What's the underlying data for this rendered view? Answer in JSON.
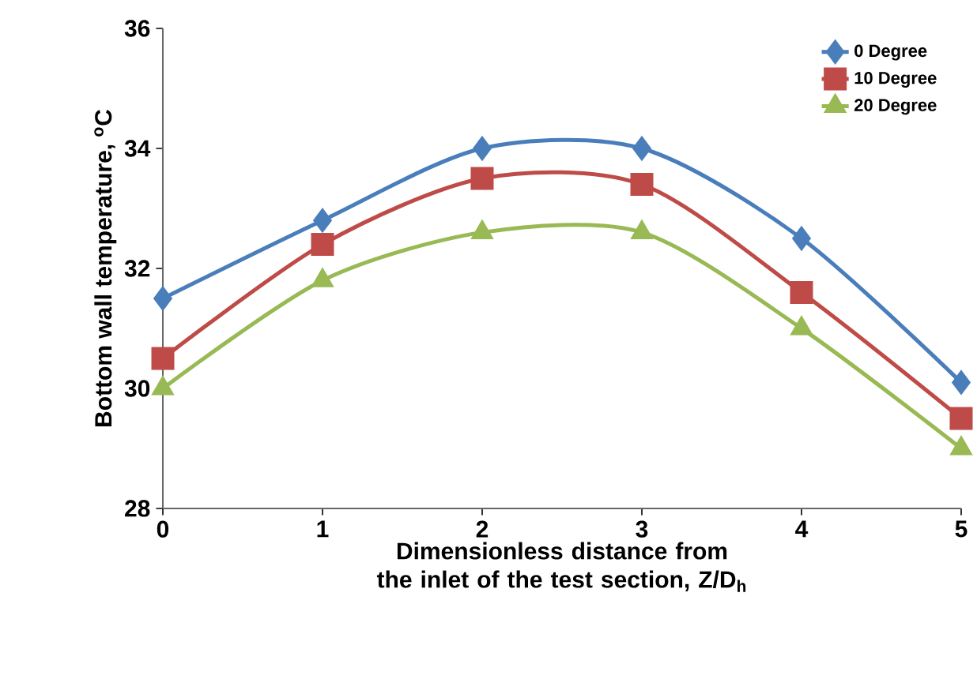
{
  "chart_data": {
    "type": "line",
    "xlabel": "Dimensionless  distance from the inlet of the test section, Z/D$_{h}$",
    "ylabel": "Bottom wall temperature, $^{o}$C",
    "x": [
      0,
      1,
      2,
      3,
      4,
      5
    ],
    "xlim": [
      0,
      5
    ],
    "xticks": [
      0,
      1,
      2,
      3,
      4,
      5
    ],
    "ylim": [
      28,
      36
    ],
    "yticks": [
      28,
      30,
      32,
      34,
      36
    ],
    "series": [
      {
        "name": "0 Degree",
        "color": "#4a7ebb",
        "marker": "diamond",
        "values": [
          31.5,
          32.8,
          34.0,
          34.0,
          32.5,
          30.1
        ]
      },
      {
        "name": "10 Degree",
        "color": "#be4b48",
        "marker": "square",
        "values": [
          30.5,
          32.4,
          33.5,
          33.4,
          31.6,
          29.5
        ]
      },
      {
        "name": "20 Degree",
        "color": "#98b954",
        "marker": "triangle",
        "values": [
          30.0,
          31.8,
          32.6,
          32.6,
          31.0,
          29.0
        ]
      }
    ],
    "legend": "top right",
    "grid": false
  }
}
